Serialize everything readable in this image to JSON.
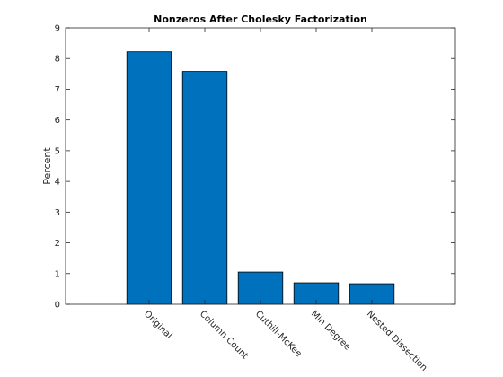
{
  "chart_data": {
    "type": "bar",
    "title": "Nonzeros After Cholesky Factorization",
    "xlabel": "",
    "ylabel": "Percent",
    "categories": [
      "Original",
      "Column Count",
      "Cuthill-McKee",
      "Min Degree",
      "Nested Dissection"
    ],
    "values": [
      8.22,
      7.58,
      1.05,
      0.7,
      0.67
    ],
    "ylim": [
      0,
      9
    ],
    "yticks": [
      "0",
      "1",
      "2",
      "3",
      "4",
      "5",
      "6",
      "7",
      "8",
      "9"
    ],
    "grid": false,
    "bar_color": "#0072BD",
    "bar_edge_color": "#000000"
  }
}
